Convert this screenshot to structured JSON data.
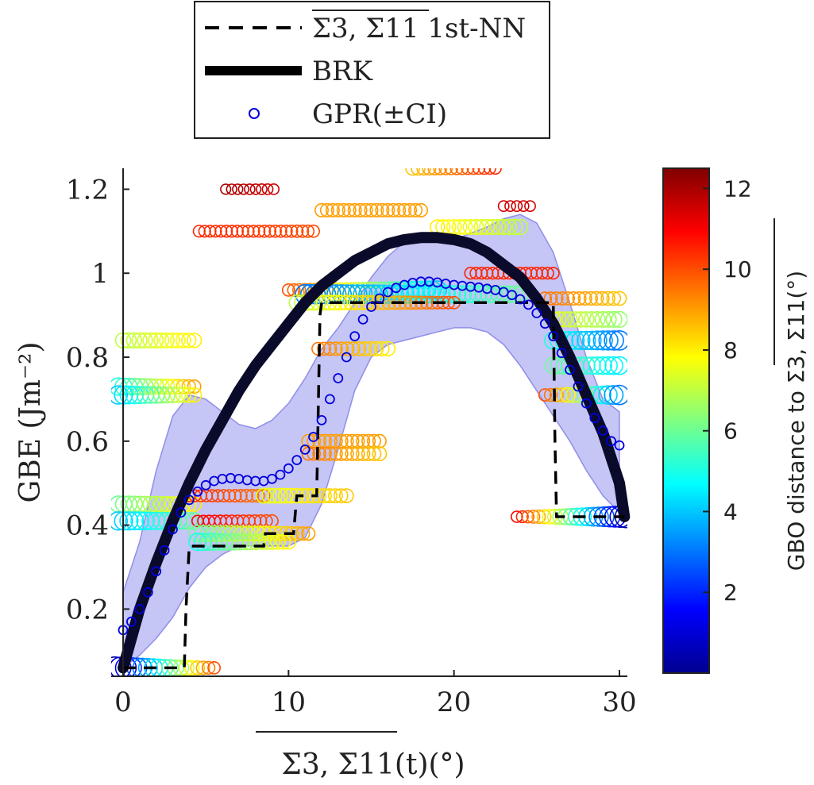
{
  "chart_data": {
    "type": "scatter",
    "title": "",
    "xlabel": "Σ3, Σ11(t)(°)",
    "ylabel": "GBE (Jm⁻²)",
    "colorbar_label": "GBO distance to Σ3, Σ11(°)",
    "xlim": [
      -0.5,
      30.5
    ],
    "ylim": [
      0.04,
      1.25
    ],
    "clim": [
      0,
      12.5
    ],
    "x_ticks": [
      0,
      10,
      20,
      30
    ],
    "x_tick_labels": [
      "0",
      "10",
      "20",
      "30"
    ],
    "y_ticks": [
      0.2,
      0.4,
      0.6,
      0.8,
      1.0,
      1.2
    ],
    "y_tick_labels": [
      "0.2",
      "0.4",
      "0.6",
      "0.8",
      "1",
      "1.2"
    ],
    "colorbar_ticks": [
      2,
      4,
      6,
      8,
      10,
      12
    ],
    "colorbar_tick_labels": [
      "2",
      "4",
      "6",
      "8",
      "10",
      "12"
    ],
    "grid": false,
    "legend_position": "top",
    "legend": [
      {
        "label": "Σ3, Σ11 1st-NN",
        "style": "dashed",
        "color": "#000000"
      },
      {
        "label": "BRK",
        "style": "thick-solid",
        "color": "#000000"
      },
      {
        "label": "GPR(±CI)",
        "style": "circle-marker",
        "color": "#0000dd"
      }
    ],
    "series": [
      {
        "name": "Σ3, Σ11 1st-NN",
        "kind": "step-line",
        "x": [
          0,
          3.7,
          3.8,
          4,
          8.5,
          8.6,
          10.3,
          10.5,
          11.7,
          11.9,
          12,
          26,
          26.1,
          26.2,
          30.3
        ],
        "y": [
          0.06,
          0.06,
          0.2,
          0.35,
          0.35,
          0.38,
          0.38,
          0.47,
          0.47,
          0.9,
          0.93,
          0.93,
          0.6,
          0.42,
          0.42
        ]
      },
      {
        "name": "BRK",
        "kind": "curve",
        "x": [
          0,
          1,
          2,
          3,
          4,
          5,
          6,
          7,
          8,
          9,
          10,
          11,
          12,
          13,
          14,
          15,
          16,
          17,
          18,
          19,
          20,
          21,
          22,
          23,
          24,
          25,
          26,
          27,
          28,
          29,
          30,
          30.3
        ],
        "y": [
          0.06,
          0.2,
          0.31,
          0.41,
          0.5,
          0.58,
          0.65,
          0.72,
          0.78,
          0.83,
          0.88,
          0.93,
          0.97,
          1.0,
          1.03,
          1.05,
          1.07,
          1.08,
          1.085,
          1.085,
          1.08,
          1.07,
          1.05,
          1.02,
          0.99,
          0.94,
          0.88,
          0.8,
          0.71,
          0.62,
          0.5,
          0.42
        ]
      },
      {
        "name": "GPR(±CI)",
        "kind": "markers",
        "x": [
          0,
          0.5,
          1,
          1.5,
          2,
          2.5,
          3,
          3.5,
          4,
          4.5,
          5,
          5.5,
          6,
          6.5,
          7,
          7.5,
          8,
          8.5,
          9,
          9.5,
          10,
          10.5,
          11,
          11.5,
          12,
          12.5,
          13,
          13.5,
          14,
          14.5,
          15,
          15.5,
          16,
          16.5,
          17,
          17.5,
          18,
          18.5,
          19,
          19.5,
          20,
          20.5,
          21,
          21.5,
          22,
          22.5,
          23,
          23.5,
          24,
          24.5,
          25,
          25.5,
          26,
          26.5,
          27,
          27.5,
          28,
          28.5,
          29,
          29.5,
          30
        ],
        "y": [
          0.15,
          0.17,
          0.2,
          0.24,
          0.29,
          0.34,
          0.39,
          0.43,
          0.46,
          0.48,
          0.495,
          0.505,
          0.51,
          0.512,
          0.51,
          0.507,
          0.505,
          0.505,
          0.51,
          0.52,
          0.535,
          0.555,
          0.58,
          0.61,
          0.65,
          0.7,
          0.75,
          0.8,
          0.85,
          0.89,
          0.92,
          0.94,
          0.955,
          0.965,
          0.972,
          0.977,
          0.98,
          0.98,
          0.978,
          0.975,
          0.972,
          0.97,
          0.968,
          0.966,
          0.963,
          0.96,
          0.955,
          0.948,
          0.938,
          0.925,
          0.905,
          0.88,
          0.85,
          0.81,
          0.77,
          0.73,
          0.69,
          0.655,
          0.625,
          0.6,
          0.59
        ]
      },
      {
        "name": "GPR CI",
        "kind": "band",
        "x": [
          0,
          1,
          2,
          3,
          4,
          5,
          6,
          7,
          8,
          9,
          10,
          11,
          12,
          13,
          14,
          15,
          16,
          17,
          18,
          19,
          20,
          21,
          22,
          23,
          24,
          25,
          26,
          27,
          28,
          29,
          30
        ],
        "lower": [
          0.06,
          0.09,
          0.13,
          0.18,
          0.25,
          0.3,
          0.33,
          0.35,
          0.35,
          0.35,
          0.35,
          0.37,
          0.45,
          0.58,
          0.72,
          0.8,
          0.83,
          0.84,
          0.85,
          0.86,
          0.87,
          0.87,
          0.86,
          0.83,
          0.78,
          0.72,
          0.66,
          0.6,
          0.53,
          0.47,
          0.43
        ],
        "upper": [
          0.24,
          0.36,
          0.53,
          0.66,
          0.71,
          0.7,
          0.67,
          0.64,
          0.63,
          0.65,
          0.69,
          0.75,
          0.82,
          0.87,
          0.93,
          0.99,
          1.04,
          1.075,
          1.09,
          1.09,
          1.08,
          1.095,
          1.11,
          1.13,
          1.14,
          1.12,
          1.05,
          0.93,
          0.8,
          0.7,
          0.67
        ]
      }
    ],
    "scatter_clusters": [
      {
        "x_start": 0,
        "x_end": 4.3,
        "y": 0.84,
        "c_start": 7,
        "c_end": 8
      },
      {
        "x_start": -0.3,
        "x_end": 4.3,
        "y": 0.73,
        "c_start": 5,
        "c_end": 9
      },
      {
        "x_start": -0.3,
        "x_end": 4.3,
        "y": 0.71,
        "c_start": 4,
        "c_end": 8
      },
      {
        "x_start": -0.3,
        "x_end": 4.3,
        "y": 0.45,
        "c_start": 6,
        "c_end": 8
      },
      {
        "x_start": -0.3,
        "x_end": 4.3,
        "y": 0.41,
        "c_start": 4,
        "c_end": 6
      },
      {
        "x_start": -0.5,
        "x_end": 5.5,
        "y": 0.06,
        "c_start": 0.5,
        "c_end": 10
      },
      {
        "x_start": 6.2,
        "x_end": 9.1,
        "y": 1.2,
        "c_start": 12,
        "c_end": 11.5
      },
      {
        "x_start": 4.6,
        "x_end": 11.5,
        "y": 1.1,
        "c_start": 10.5,
        "c_end": 10
      },
      {
        "x_start": 4,
        "x_end": 8.5,
        "y": 0.47,
        "c_start": 10.5,
        "c_end": 9.5
      },
      {
        "x_start": 8.5,
        "x_end": 13.5,
        "y": 0.47,
        "c_start": 7.5,
        "c_end": 8.5
      },
      {
        "x_start": 4.5,
        "x_end": 9,
        "y": 0.41,
        "c_start": 11,
        "c_end": 10
      },
      {
        "x_start": 4.5,
        "x_end": 11.2,
        "y": 0.38,
        "c_start": 6,
        "c_end": 9
      },
      {
        "x_start": 4.5,
        "x_end": 10,
        "y": 0.36,
        "c_start": 5,
        "c_end": 8
      },
      {
        "x_start": 11.2,
        "x_end": 15.5,
        "y": 0.6,
        "c_start": 9,
        "c_end": 9
      },
      {
        "x_start": 11.2,
        "x_end": 15.5,
        "y": 0.57,
        "c_start": 9.5,
        "c_end": 8.5
      },
      {
        "x_start": 11.8,
        "x_end": 16,
        "y": 0.82,
        "c_start": 9.5,
        "c_end": 8
      },
      {
        "x_start": 12,
        "x_end": 18,
        "y": 1.15,
        "c_start": 9,
        "c_end": 9
      },
      {
        "x_start": 17.5,
        "x_end": 22.5,
        "y": 1.25,
        "c_start": 8.5,
        "c_end": 10.5
      },
      {
        "x_start": 19,
        "x_end": 24,
        "y": 1.11,
        "c_start": 8,
        "c_end": 7
      },
      {
        "x_start": 23,
        "x_end": 24.6,
        "y": 1.16,
        "c_start": 11.5,
        "c_end": 11.5
      },
      {
        "x_start": 10,
        "x_end": 19,
        "y": 0.96,
        "c_start": 10,
        "c_end": 4
      },
      {
        "x_start": 11,
        "x_end": 24,
        "y": 0.95,
        "c_start": 3,
        "c_end": 6
      },
      {
        "x_start": 10.5,
        "x_end": 20,
        "y": 0.93,
        "c_start": 7,
        "c_end": 10
      },
      {
        "x_start": 21,
        "x_end": 26,
        "y": 1.0,
        "c_start": 10.5,
        "c_end": 10.5
      },
      {
        "x_start": 25.5,
        "x_end": 30,
        "y": 0.94,
        "c_start": 9.5,
        "c_end": 8.5
      },
      {
        "x_start": 26,
        "x_end": 30,
        "y": 0.89,
        "c_start": 7.5,
        "c_end": 6.5
      },
      {
        "x_start": 26,
        "x_end": 30,
        "y": 0.84,
        "c_start": 5,
        "c_end": 3
      },
      {
        "x_start": 26,
        "x_end": 30,
        "y": 0.78,
        "c_start": 6,
        "c_end": 4.5
      },
      {
        "x_start": 25.5,
        "x_end": 30,
        "y": 0.71,
        "c_start": 10,
        "c_end": 3
      },
      {
        "x_start": 23.8,
        "x_end": 30.4,
        "y": 0.42,
        "c_start": 11,
        "c_end": 0.5
      }
    ]
  }
}
